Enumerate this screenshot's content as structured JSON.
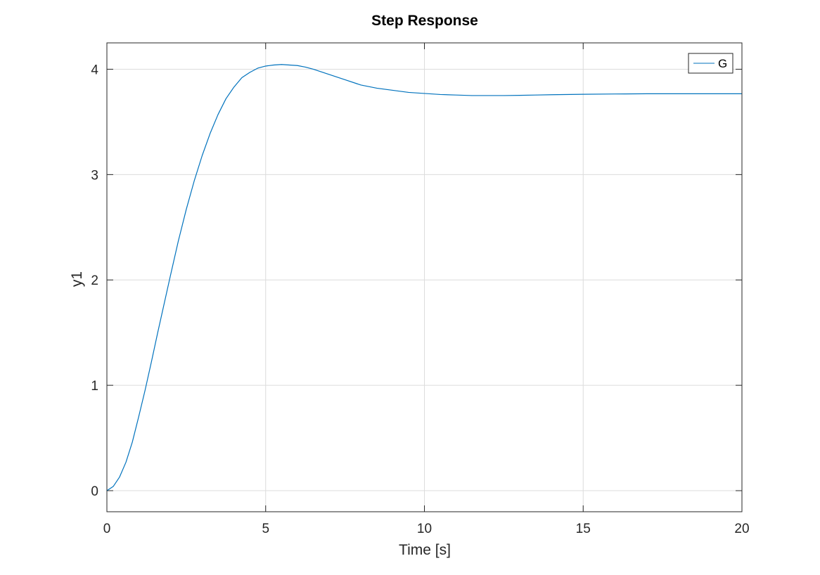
{
  "chart_data": {
    "type": "line",
    "title": "Step Response",
    "xlabel": "Time [s]",
    "ylabel": "y1",
    "xlim": [
      0,
      20
    ],
    "ylim": [
      -0.2,
      4.25
    ],
    "xticks": [
      0,
      5,
      10,
      15,
      20
    ],
    "yticks": [
      0,
      1,
      2,
      3,
      4
    ],
    "grid": true,
    "legend_placement": "top-right",
    "series": [
      {
        "name": "G",
        "color": "#0072bd",
        "x": [
          0,
          0.2,
          0.4,
          0.6,
          0.8,
          1.0,
          1.2,
          1.4,
          1.6,
          1.8,
          2.0,
          2.25,
          2.5,
          2.75,
          3.0,
          3.25,
          3.5,
          3.75,
          4.0,
          4.25,
          4.5,
          4.75,
          5.0,
          5.25,
          5.5,
          5.75,
          6.0,
          6.25,
          6.5,
          6.75,
          7.0,
          7.5,
          8.0,
          8.5,
          9.0,
          9.5,
          10.0,
          10.5,
          11.0,
          11.5,
          12.0,
          12.5,
          13.0,
          13.5,
          14.0,
          15.0,
          16.0,
          17.0,
          18.0,
          19.0,
          20.0
        ],
        "y": [
          0,
          0.04,
          0.13,
          0.27,
          0.46,
          0.7,
          0.95,
          1.22,
          1.5,
          1.77,
          2.04,
          2.37,
          2.67,
          2.94,
          3.18,
          3.39,
          3.57,
          3.72,
          3.83,
          3.92,
          3.97,
          4.01,
          4.03,
          4.04,
          4.045,
          4.04,
          4.035,
          4.02,
          4.0,
          3.975,
          3.95,
          3.9,
          3.85,
          3.82,
          3.8,
          3.78,
          3.77,
          3.76,
          3.755,
          3.75,
          3.75,
          3.75,
          3.752,
          3.755,
          3.758,
          3.762,
          3.765,
          3.767,
          3.767,
          3.767,
          3.767
        ]
      }
    ]
  }
}
